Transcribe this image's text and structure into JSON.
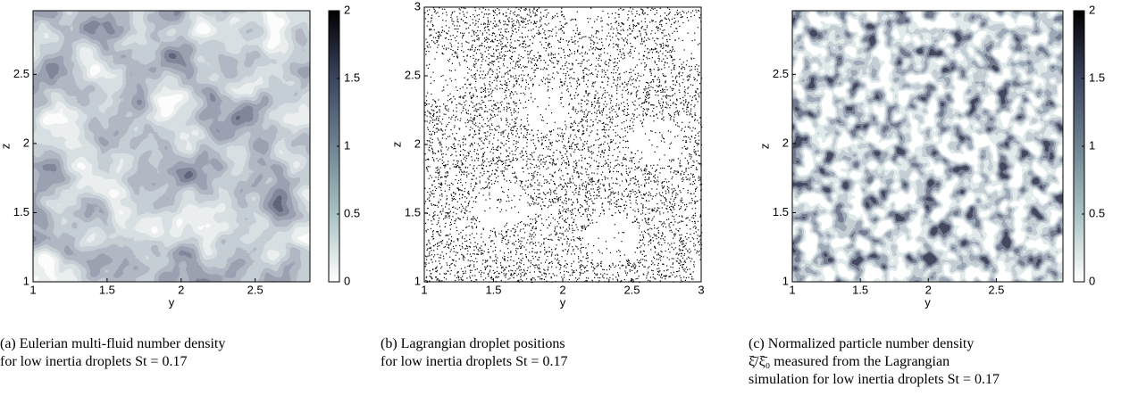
{
  "panels": [
    {
      "xlabel": "y",
      "ylabel": "z",
      "xlim": [
        1,
        2.87
      ],
      "ylim": [
        1,
        2.96
      ],
      "xticks": [
        1,
        1.5,
        2,
        2.5
      ],
      "yticks": [
        1,
        1.5,
        2,
        2.5
      ],
      "colorbar": {
        "lim": [
          0,
          2
        ],
        "ticks": [
          0,
          0.5,
          1,
          1.5,
          2
        ]
      },
      "caption": [
        "(a) Eulerian multi-fluid number density",
        "for low inertia droplets St  =  0.17"
      ]
    },
    {
      "xlabel": "y",
      "ylabel": "z",
      "xlim": [
        1,
        3
      ],
      "ylim": [
        1,
        3
      ],
      "xticks": [
        1,
        1.5,
        2,
        2.5,
        3
      ],
      "yticks": [
        1,
        1.5,
        2,
        2.5,
        3
      ],
      "caption": [
        "(b) Lagrangian droplet positions",
        "for low inertia droplets St  =  0.17"
      ]
    },
    {
      "xlabel": "y",
      "ylabel": "z",
      "xlim": [
        1,
        2.99
      ],
      "ylim": [
        1,
        2.96
      ],
      "xticks": [
        1,
        1.5,
        2,
        2.5
      ],
      "yticks": [
        1,
        1.5,
        2,
        2.5
      ],
      "colorbar": {
        "lim": [
          0,
          2
        ],
        "ticks": [
          0,
          0.5,
          1,
          1.5,
          2
        ]
      },
      "caption": [
        "(c) Normalized particle number density",
        "ξ̄/ξ̄₀ measured from the Lagrangian",
        "simulation for low inertia droplets St  =  0.17"
      ]
    }
  ]
}
